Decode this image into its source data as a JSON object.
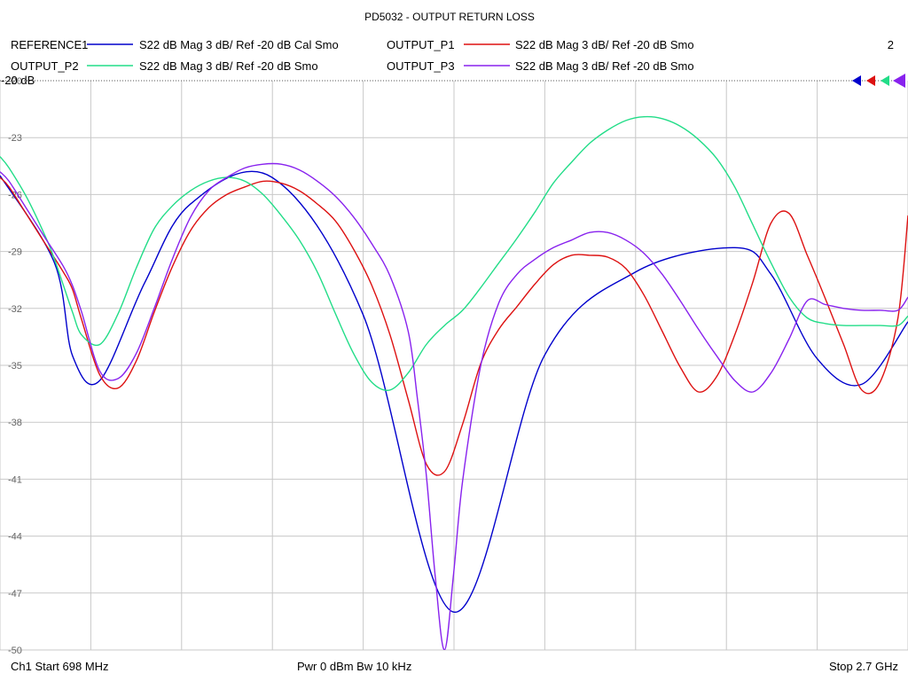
{
  "chart_data": {
    "type": "line",
    "title": "PD5032 - OUTPUT RETURN LOSS",
    "channel_label": "2",
    "ref_label": "-20 dB",
    "footer": {
      "start": "Ch1  Start  698 MHz",
      "power": "Pwr  0 dBm  Bw  10 kHz",
      "stop": "Stop  2.7 GHz"
    },
    "xlim": [
      698,
      2700
    ],
    "ylim": [
      -50,
      -20
    ],
    "yticks": [
      -20,
      -23,
      -26,
      -29,
      -32,
      -35,
      -38,
      -41,
      -44,
      -47,
      -50
    ],
    "ytick_labels": [
      "-20",
      "-23",
      "-26",
      "-29",
      "-32",
      "-35",
      "-38",
      "-41",
      "-44",
      "-47",
      "-50"
    ],
    "grid": true,
    "legend_position": "top",
    "series": [
      {
        "name": "REFERENCE1",
        "format": "S22  dB Mag  3 dB/ Ref -20 dB  Cal Smo",
        "color": "#0000cc",
        "x": [
          698,
          818,
          858,
          918,
          1018,
          1118,
          1298,
          1498,
          1698,
          1898,
          2098,
          2318,
          2398,
          2498,
          2598,
          2700
        ],
        "y": [
          -25.0,
          -29.6,
          -34.5,
          -35.8,
          -30.6,
          -26.5,
          -25.1,
          -32.3,
          -48.0,
          -34.5,
          -30.1,
          -28.8,
          -30.2,
          -34.6,
          -36.0,
          -32.7
        ]
      },
      {
        "name": "OUTPUT_P1",
        "format": "S22  dB Mag  3 dB/ Ref -20 dB  Smo",
        "color": "#dd1111",
        "x": [
          698,
          718,
          758,
          798,
          838,
          858,
          878,
          918,
          958,
          998,
          1038,
          1078,
          1118,
          1158,
          1198,
          1238,
          1278,
          1318,
          1358,
          1398,
          1438,
          1478,
          1518,
          1558,
          1598,
          1638,
          1678,
          1718,
          1758,
          1798,
          1838,
          1878,
          1918,
          1958,
          1998,
          2038,
          2078,
          2118,
          2158,
          2198,
          2238,
          2278,
          2318,
          2358,
          2398,
          2438,
          2478,
          2518,
          2558,
          2598,
          2638,
          2678,
          2700
        ],
        "y": [
          -25.1,
          -25.6,
          -27.1,
          -28.6,
          -30.1,
          -31.0,
          -32.6,
          -35.5,
          -36.2,
          -34.8,
          -32.2,
          -29.8,
          -27.9,
          -26.7,
          -26.0,
          -25.6,
          -25.3,
          -25.4,
          -25.8,
          -26.5,
          -27.4,
          -28.9,
          -30.8,
          -33.4,
          -36.8,
          -40.2,
          -40.6,
          -38.1,
          -34.9,
          -33.1,
          -31.9,
          -30.7,
          -29.7,
          -29.2,
          -29.2,
          -29.3,
          -29.9,
          -31.3,
          -33.2,
          -35.1,
          -36.4,
          -35.6,
          -33.4,
          -30.6,
          -27.5,
          -27.0,
          -29.2,
          -31.5,
          -33.9,
          -36.3,
          -35.9,
          -32.5,
          -27.1
        ]
      },
      {
        "name": "OUTPUT_P2",
        "format": "S22  dB Mag  3 dB/ Ref -20 dB  Smo",
        "color": "#22dd88",
        "x": [
          698,
          718,
          758,
          798,
          818,
          838,
          858,
          878,
          918,
          958,
          998,
          1038,
          1078,
          1118,
          1158,
          1198,
          1238,
          1278,
          1318,
          1358,
          1398,
          1438,
          1478,
          1518,
          1558,
          1598,
          1638,
          1678,
          1718,
          1758,
          1798,
          1838,
          1878,
          1918,
          1958,
          1998,
          2038,
          2078,
          2118,
          2158,
          2198,
          2238,
          2278,
          2318,
          2358,
          2398,
          2438,
          2478,
          2518,
          2558,
          2598,
          2638,
          2678,
          2700
        ],
        "y": [
          -24.0,
          -24.6,
          -26.2,
          -28.2,
          -29.4,
          -30.8,
          -32.2,
          -33.4,
          -33.9,
          -32.3,
          -29.9,
          -27.8,
          -26.6,
          -25.8,
          -25.3,
          -25.1,
          -25.3,
          -26.0,
          -27.1,
          -28.4,
          -30.1,
          -32.3,
          -34.4,
          -35.9,
          -36.3,
          -35.4,
          -33.9,
          -32.9,
          -32.1,
          -30.9,
          -29.6,
          -28.3,
          -26.9,
          -25.4,
          -24.3,
          -23.3,
          -22.6,
          -22.1,
          -21.9,
          -22.0,
          -22.4,
          -23.1,
          -24.1,
          -25.6,
          -27.6,
          -29.6,
          -31.4,
          -32.5,
          -32.8,
          -32.9,
          -32.9,
          -32.9,
          -32.9,
          -32.4
        ]
      },
      {
        "name": "OUTPUT_P3",
        "format": "S22  dB Mag  3 dB/ Ref -20 dB  Smo",
        "color": "#8822ee",
        "x": [
          698,
          718,
          758,
          798,
          838,
          858,
          878,
          918,
          958,
          998,
          1038,
          1078,
          1118,
          1158,
          1198,
          1238,
          1278,
          1318,
          1358,
          1398,
          1438,
          1478,
          1518,
          1558,
          1598,
          1618,
          1638,
          1658,
          1678,
          1698,
          1718,
          1758,
          1798,
          1838,
          1878,
          1918,
          1958,
          1998,
          2038,
          2078,
          2118,
          2158,
          2198,
          2238,
          2278,
          2318,
          2358,
          2398,
          2438,
          2478,
          2518,
          2558,
          2598,
          2638,
          2678,
          2700
        ],
        "y": [
          -24.8,
          -25.3,
          -26.8,
          -28.3,
          -29.8,
          -30.8,
          -32.2,
          -35.3,
          -35.7,
          -34.4,
          -32.0,
          -29.4,
          -27.2,
          -25.8,
          -25.1,
          -24.6,
          -24.4,
          -24.4,
          -24.7,
          -25.3,
          -26.1,
          -27.2,
          -28.6,
          -30.3,
          -33.2,
          -36.7,
          -40.8,
          -46.2,
          -50.0,
          -46.0,
          -41.1,
          -35.0,
          -31.7,
          -30.2,
          -29.4,
          -28.8,
          -28.4,
          -28.0,
          -28.0,
          -28.4,
          -29.1,
          -30.2,
          -31.6,
          -33.1,
          -34.5,
          -35.8,
          -36.4,
          -35.4,
          -33.6,
          -31.6,
          -31.8,
          -32.0,
          -32.1,
          -32.1,
          -32.1,
          -31.4
        ]
      }
    ]
  }
}
